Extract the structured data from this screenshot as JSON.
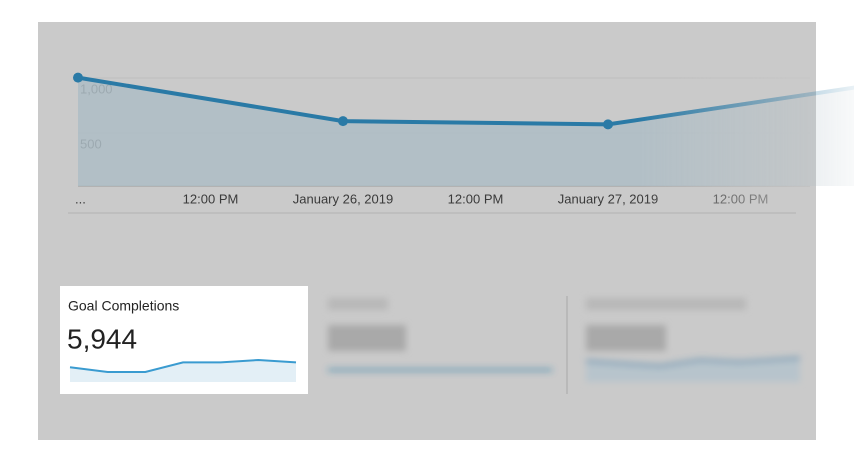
{
  "chart_data": {
    "type": "line",
    "xticks": [
      "...",
      "12:00 PM",
      "January 26, 2019",
      "12:00 PM",
      "January 27, 2019",
      "12:00 PM"
    ],
    "values": [
      985,
      590,
      560,
      920
    ],
    "color": "#2a7aa6",
    "ylim": [
      0,
      1000
    ],
    "yticks": [
      {
        "value": 1000,
        "label": "1,000"
      },
      500
    ],
    "grid": true
  },
  "metric_card": {
    "title": "Goal Completions",
    "value": "5,944",
    "sparkline": [
      6,
      4,
      4,
      8,
      8,
      9,
      8
    ]
  }
}
